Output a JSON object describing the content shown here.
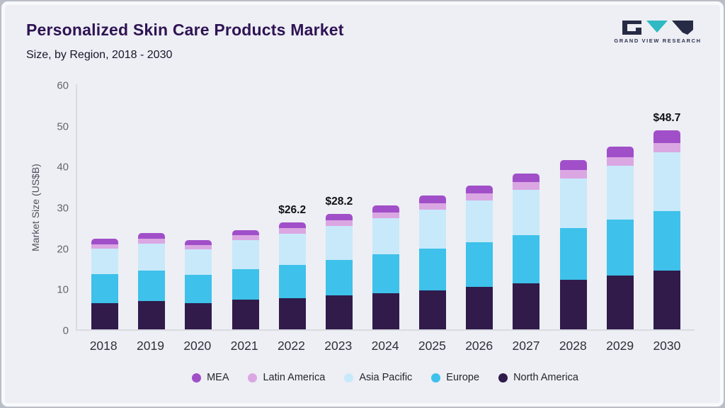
{
  "header": {
    "title": "Personalized Skin Care Products Market",
    "subtitle": "Size, by Region, 2018 - 2030",
    "logo_text": "GRAND VIEW RESEARCH"
  },
  "chart_data": {
    "type": "bar",
    "stacked": true,
    "title": "Personalized Skin Care Products Market Size, by Region, 2018 - 2030",
    "xlabel": "",
    "ylabel": "Market Size (US$B)",
    "ylim": [
      0,
      60
    ],
    "yticks": [
      0,
      10,
      20,
      30,
      40,
      50,
      60
    ],
    "grid": false,
    "legend_position": "bottom",
    "categories": [
      "2018",
      "2019",
      "2020",
      "2021",
      "2022",
      "2023",
      "2024",
      "2025",
      "2026",
      "2027",
      "2028",
      "2029",
      "2030"
    ],
    "series": [
      {
        "name": "North America",
        "color": "#301b4b",
        "values": [
          6.5,
          7.0,
          6.5,
          7.2,
          7.7,
          8.3,
          8.9,
          9.6,
          10.4,
          11.2,
          12.1,
          13.2,
          14.4
        ]
      },
      {
        "name": "Europe",
        "color": "#3ec1ea",
        "values": [
          7.1,
          7.4,
          6.9,
          7.6,
          8.1,
          8.7,
          9.4,
          10.1,
          10.9,
          11.8,
          12.7,
          13.6,
          14.6
        ]
      },
      {
        "name": "Asia Pacific",
        "color": "#c8e9fa",
        "values": [
          6.1,
          6.6,
          6.2,
          7.0,
          7.7,
          8.3,
          8.9,
          9.6,
          10.3,
          11.2,
          12.1,
          13.2,
          14.3
        ]
      },
      {
        "name": "Latin America",
        "color": "#dba7e3",
        "values": [
          1.2,
          1.2,
          1.1,
          1.2,
          1.3,
          1.4,
          1.5,
          1.6,
          1.7,
          1.9,
          2.1,
          2.1,
          2.3
        ]
      },
      {
        "name": "MEA",
        "color": "#a14fc9",
        "values": [
          1.3,
          1.4,
          1.2,
          1.3,
          1.4,
          1.5,
          1.6,
          1.8,
          1.9,
          2.1,
          2.5,
          2.6,
          3.1
        ]
      }
    ],
    "annotations": [
      {
        "category": "2022",
        "text": "$26.2"
      },
      {
        "category": "2023",
        "text": "$28.2"
      },
      {
        "category": "2030",
        "text": "$48.7"
      }
    ],
    "legend": [
      "MEA",
      "Latin America",
      "Asia Pacific",
      "Europe",
      "North America"
    ]
  }
}
